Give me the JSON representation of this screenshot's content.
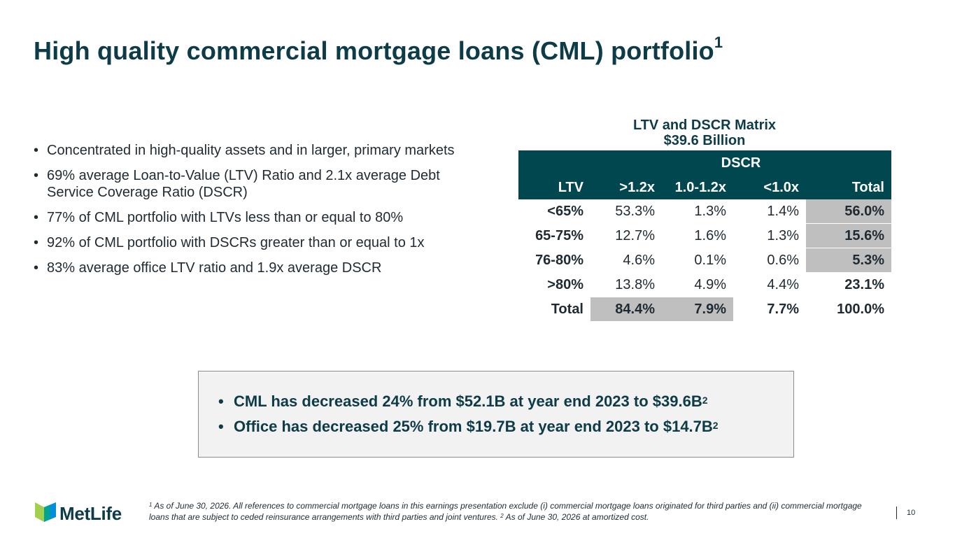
{
  "title": {
    "main": "High quality commercial mortgage loans (CML) portfolio",
    "footnote_ref": "1"
  },
  "bullets": [
    "Concentrated in high-quality assets and in larger, primary markets",
    "69% average Loan-to-Value (LTV) Ratio and 2.1x average Debt Service Coverage Ratio (DSCR)",
    "77% of CML portfolio with LTVs less than or equal to 80%",
    "92% of CML portfolio with DSCRs greater than or equal to 1x",
    "83% average office LTV ratio and 1.9x average DSCR"
  ],
  "matrix": {
    "title_line1": "LTV and DSCR Matrix",
    "title_line2": "$39.6 Billion",
    "group_header": "DSCR",
    "columns": [
      "LTV",
      ">1.2x",
      "1.0-1.2x",
      "<1.0x",
      "Total"
    ],
    "rows": [
      {
        "ltv": "<65%",
        "gt12": "53.3%",
        "mid": "1.3%",
        "lt10": "1.4%",
        "total": "56.0%"
      },
      {
        "ltv": "65-75%",
        "gt12": "12.7%",
        "mid": "1.6%",
        "lt10": "1.3%",
        "total": "15.6%"
      },
      {
        "ltv": "76-80%",
        "gt12": "4.6%",
        "mid": "0.1%",
        "lt10": "0.6%",
        "total": "5.3%"
      },
      {
        "ltv": ">80%",
        "gt12": "13.8%",
        "mid": "4.9%",
        "lt10": "4.4%",
        "total": "23.1%"
      },
      {
        "ltv": "Total",
        "gt12": "84.4%",
        "mid": "7.9%",
        "lt10": "7.7%",
        "total": "100.0%"
      }
    ]
  },
  "callout": [
    {
      "text": "CML has decreased 24% from $52.1B at year end 2023 to $39.6B",
      "ref": "2"
    },
    {
      "text": "Office has decreased 25% from $19.7B at year end 2023 to $14.7B",
      "ref": "2"
    }
  ],
  "logo": {
    "text": "MetLife",
    "colors": [
      "#a4ce4e",
      "#0090da",
      "#00a58d"
    ]
  },
  "footnote": {
    "ref1": "1",
    "text1": " As of June 30, 2026. All references to commercial mortgage loans in this earnings presentation exclude (i) commercial mortgage loans originated for third parties and (ii) commercial mortgage loans that are subject to ceded reinsurance arrangements with third parties and joint ventures. ",
    "ref2": "2",
    "text2": " As of June 30, 2026 at amortized cost."
  },
  "page_number": "10"
}
